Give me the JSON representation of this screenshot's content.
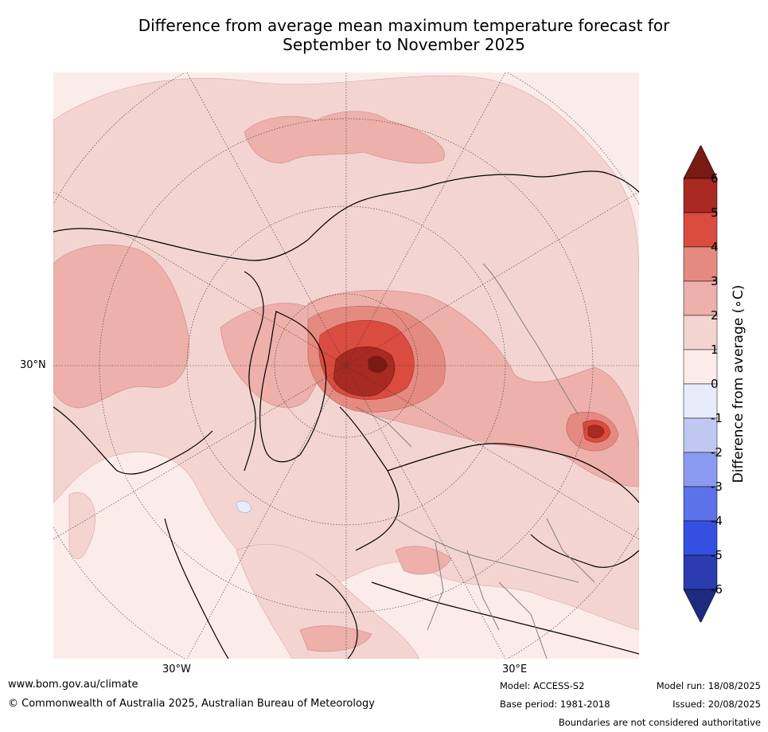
{
  "title_line1": "Difference from average mean maximum temperature forecast for",
  "title_line2": "September to November 2025",
  "map": {
    "lat_label": "30°N",
    "lon_labels": [
      "30°W",
      "30°E"
    ]
  },
  "colorbar": {
    "ticks": [
      "6",
      "5",
      "4",
      "3",
      "2",
      "1",
      "0",
      "-1",
      "-2",
      "-3",
      "-4",
      "-5",
      "-6"
    ],
    "label": "Difference from average (∘C)",
    "colors": {
      "above_6": "#7a1a14",
      "5_6": "#a82a22",
      "4_5": "#d94c3f",
      "3_4": "#e58a80",
      "2_3": "#edb0aa",
      "1_2": "#f4d4d1",
      "0_1": "#fbecea",
      "m1_0": "#e8ecfa",
      "m2_m1": "#c0c8f2",
      "m3_m2": "#8b9af0",
      "m4_m3": "#5c72e8",
      "m5_m4": "#3550e0",
      "m6_m5": "#2a3cb0",
      "below_m6": "#1e2a80"
    }
  },
  "footer": {
    "website": "www.bom.gov.au/climate",
    "copyright": "© Commonwealth of Australia 2025, Australian Bureau of Meteorology",
    "model": "Model: ACCESS-S2",
    "base_period": "Base period: 1981-2018",
    "model_run": "Model run: 18/08/2025",
    "issued": "Issued: 20/08/2025",
    "disclaimer": "Boundaries are not considered authoritative"
  }
}
